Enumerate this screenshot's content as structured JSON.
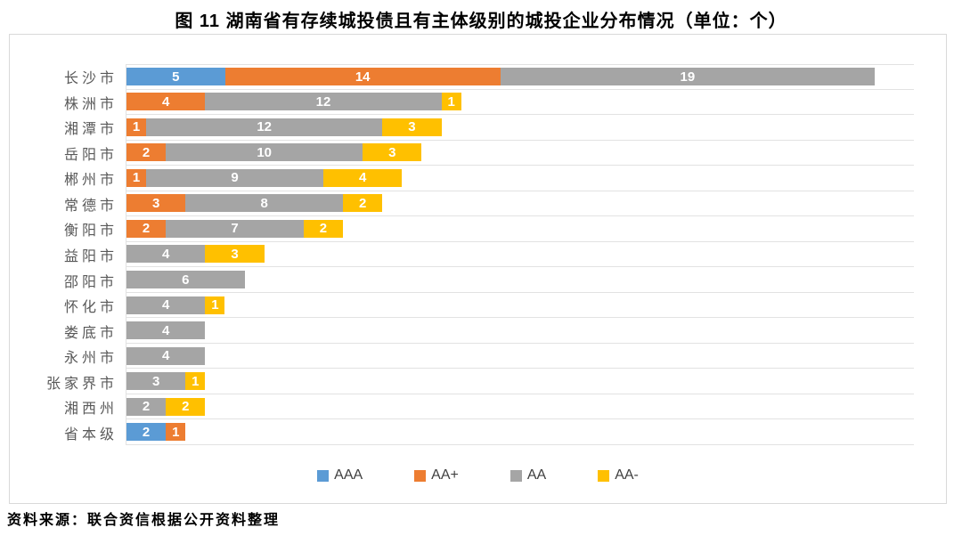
{
  "title": "图 11  湖南省有存续城投债且有主体级别的城投企业分布情况（单位：个）",
  "source": "资料来源：联合资信根据公开资料整理",
  "chart_data": {
    "type": "bar",
    "orientation": "horizontal",
    "stacked": true,
    "title": "图 11  湖南省有存续城投债且有主体级别的城投企业分布情况（单位：个）",
    "unit": "个",
    "categories": [
      "长沙市",
      "株洲市",
      "湘潭市",
      "岳阳市",
      "郴州市",
      "常德市",
      "衡阳市",
      "益阳市",
      "邵阳市",
      "怀化市",
      "娄底市",
      "永州市",
      "张家界市",
      "湘西州",
      "省本级"
    ],
    "series": [
      {
        "name": "AAA",
        "color": "#5B9BD5",
        "values": [
          5,
          0,
          0,
          0,
          0,
          0,
          0,
          0,
          0,
          0,
          0,
          0,
          0,
          0,
          2
        ]
      },
      {
        "name": "AA+",
        "color": "#ED7D31",
        "values": [
          14,
          4,
          1,
          2,
          1,
          3,
          2,
          0,
          0,
          0,
          0,
          0,
          0,
          0,
          1
        ]
      },
      {
        "name": "AA",
        "color": "#A5A5A5",
        "values": [
          19,
          12,
          12,
          10,
          9,
          8,
          7,
          4,
          6,
          4,
          4,
          4,
          3,
          2,
          0
        ]
      },
      {
        "name": "AA-",
        "color": "#FFC000",
        "values": [
          0,
          1,
          3,
          3,
          4,
          2,
          2,
          3,
          0,
          1,
          0,
          0,
          1,
          2,
          0
        ]
      }
    ],
    "xlim": [
      0,
      40
    ],
    "grid": "category-separators",
    "legend_position": "bottom",
    "data_labels": "inside-center-white"
  }
}
